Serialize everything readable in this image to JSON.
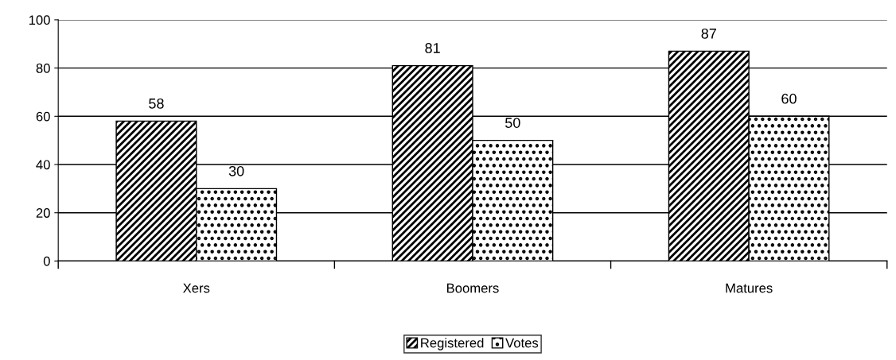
{
  "chart_data": {
    "type": "bar",
    "categories": [
      "Xers",
      "Boomers",
      "Matures"
    ],
    "series": [
      {
        "name": "Registered",
        "color": "#000000",
        "values": [
          58,
          81,
          87
        ]
      },
      {
        "name": "Votes",
        "color": "#000000",
        "values": [
          30,
          50,
          60
        ]
      }
    ],
    "ylim": [
      0,
      100
    ],
    "yticks": [
      0,
      20,
      40,
      60,
      80,
      100
    ],
    "grid": "y",
    "legend": "bottom",
    "data_labels": true
  }
}
